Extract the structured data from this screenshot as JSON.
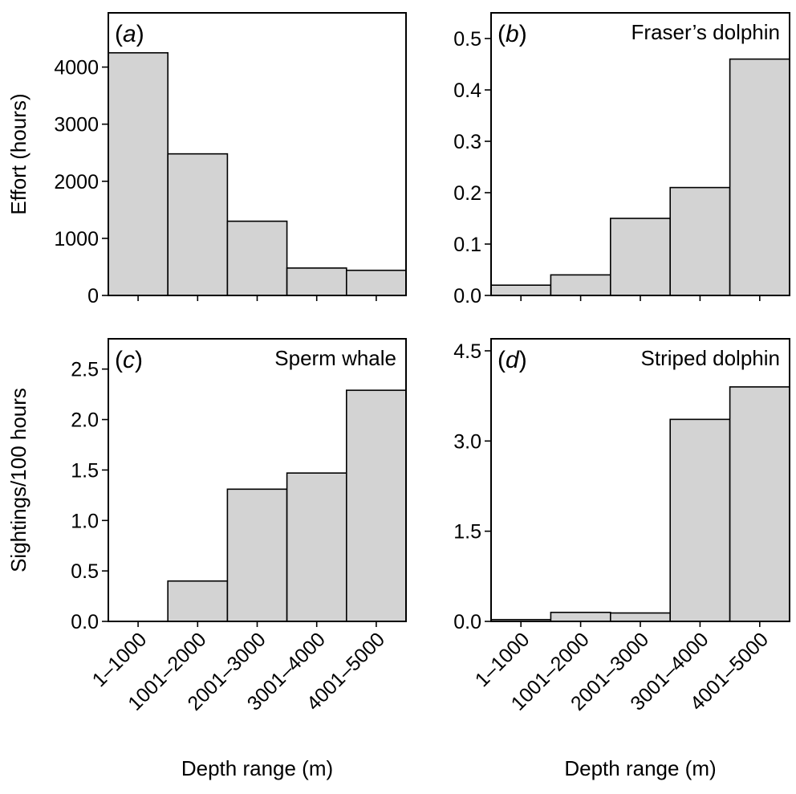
{
  "figure": {
    "left_ylabel_top": "Effort (hours)",
    "left_ylabel_bottom": "Sightings/100 hours"
  },
  "chart_data": [
    {
      "type": "bar",
      "panel_label": "a",
      "title": "",
      "xlabel": "",
      "ylabel": "Effort (hours)",
      "categories": [
        "1–1000",
        "1001–2000",
        "2001–3000",
        "3001–4000",
        "4001–5000"
      ],
      "values": [
        4250,
        2480,
        1300,
        480,
        440
      ],
      "ylim": [
        0,
        4950
      ],
      "yticks": [
        0,
        1000,
        2000,
        3000,
        4000
      ],
      "ytick_labels": [
        "0",
        "1000",
        "2000",
        "3000",
        "4000"
      ],
      "show_x_tick_labels": false,
      "grid": false,
      "bar_color": "#d3d3d3",
      "edge_color": "#000000"
    },
    {
      "type": "bar",
      "panel_label": "b",
      "title": "Fraser’s dolphin",
      "xlabel": "",
      "ylabel": "",
      "categories": [
        "1–1000",
        "1001–2000",
        "2001–3000",
        "3001–4000",
        "4001–5000"
      ],
      "values": [
        0.02,
        0.04,
        0.15,
        0.21,
        0.46
      ],
      "ylim": [
        0,
        0.55
      ],
      "yticks": [
        0,
        0.1,
        0.2,
        0.3,
        0.4,
        0.5
      ],
      "ytick_labels": [
        "0.0",
        "0.1",
        "0.2",
        "0.3",
        "0.4",
        "0.5"
      ],
      "show_x_tick_labels": false,
      "grid": false,
      "bar_color": "#d3d3d3",
      "edge_color": "#000000"
    },
    {
      "type": "bar",
      "panel_label": "c",
      "title": "Sperm whale",
      "xlabel": "Depth range (m)",
      "ylabel": "Sightings/100 hours",
      "categories": [
        "1–1000",
        "1001–2000",
        "2001–3000",
        "3001–4000",
        "4001–5000"
      ],
      "values": [
        0,
        0.4,
        1.31,
        1.47,
        2.29
      ],
      "ylim": [
        0,
        2.8
      ],
      "yticks": [
        0,
        0.5,
        1.0,
        1.5,
        2.0,
        2.5
      ],
      "ytick_labels": [
        "0.0",
        "0.5",
        "1.0",
        "1.5",
        "2.0",
        "2.5"
      ],
      "show_x_tick_labels": true,
      "grid": false,
      "bar_color": "#d3d3d3",
      "edge_color": "#000000"
    },
    {
      "type": "bar",
      "panel_label": "d",
      "title": "Striped dolphin",
      "xlabel": "Depth range (m)",
      "ylabel": "",
      "categories": [
        "1–1000",
        "1001–2000",
        "2001–3000",
        "3001–4000",
        "4001–5000"
      ],
      "values": [
        0.03,
        0.15,
        0.14,
        3.36,
        3.9
      ],
      "ylim": [
        0,
        4.7
      ],
      "yticks": [
        0,
        1.5,
        3.0,
        4.5
      ],
      "ytick_labels": [
        "0.0",
        "1.5",
        "3.0",
        "4.5"
      ],
      "show_x_tick_labels": true,
      "grid": false,
      "bar_color": "#d3d3d3",
      "edge_color": "#000000"
    }
  ]
}
